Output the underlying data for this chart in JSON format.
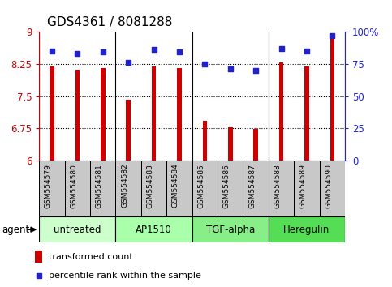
{
  "title": "GDS4361 / 8081288",
  "samples": [
    "GSM554579",
    "GSM554580",
    "GSM554581",
    "GSM554582",
    "GSM554583",
    "GSM554584",
    "GSM554585",
    "GSM554586",
    "GSM554587",
    "GSM554588",
    "GSM554589",
    "GSM554590"
  ],
  "bar_values": [
    8.19,
    8.12,
    8.15,
    7.42,
    8.19,
    8.16,
    6.93,
    6.78,
    6.74,
    8.28,
    8.19,
    8.87
  ],
  "dot_values": [
    85,
    83,
    84,
    76,
    86,
    84,
    75,
    71,
    70,
    87,
    85,
    97
  ],
  "bar_color": "#cc0000",
  "dot_color": "#2222cc",
  "ylim_left": [
    6,
    9
  ],
  "ylim_right": [
    0,
    100
  ],
  "yticks_left": [
    6,
    6.75,
    7.5,
    8.25,
    9
  ],
  "ytick_labels_left": [
    "6",
    "6.75",
    "7.5",
    "8.25",
    "9"
  ],
  "yticks_right": [
    0,
    25,
    50,
    75,
    100
  ],
  "ytick_labels_right": [
    "0",
    "25",
    "50",
    "75",
    "100%"
  ],
  "hlines": [
    6.75,
    7.5,
    8.25
  ],
  "groups": [
    {
      "label": "untreated",
      "start": 0,
      "end": 3,
      "color": "#ccffcc"
    },
    {
      "label": "AP1510",
      "start": 3,
      "end": 6,
      "color": "#aaffaa"
    },
    {
      "label": "TGF-alpha",
      "start": 6,
      "end": 9,
      "color": "#88ee88"
    },
    {
      "label": "Heregulin",
      "start": 9,
      "end": 12,
      "color": "#55dd55"
    }
  ],
  "legend_bar_label": "transformed count",
  "legend_dot_label": "percentile rank within the sample",
  "agent_label": "agent",
  "bg_color": "#ffffff",
  "plot_bg": "#ffffff",
  "tick_label_color_left": "#cc0000",
  "tick_label_color_right": "#2222cc",
  "bar_width": 0.18,
  "group_label_fontsize": 8.5,
  "sample_label_fontsize": 6.5,
  "title_fontsize": 11,
  "xlab_bg": "#c8c8c8"
}
